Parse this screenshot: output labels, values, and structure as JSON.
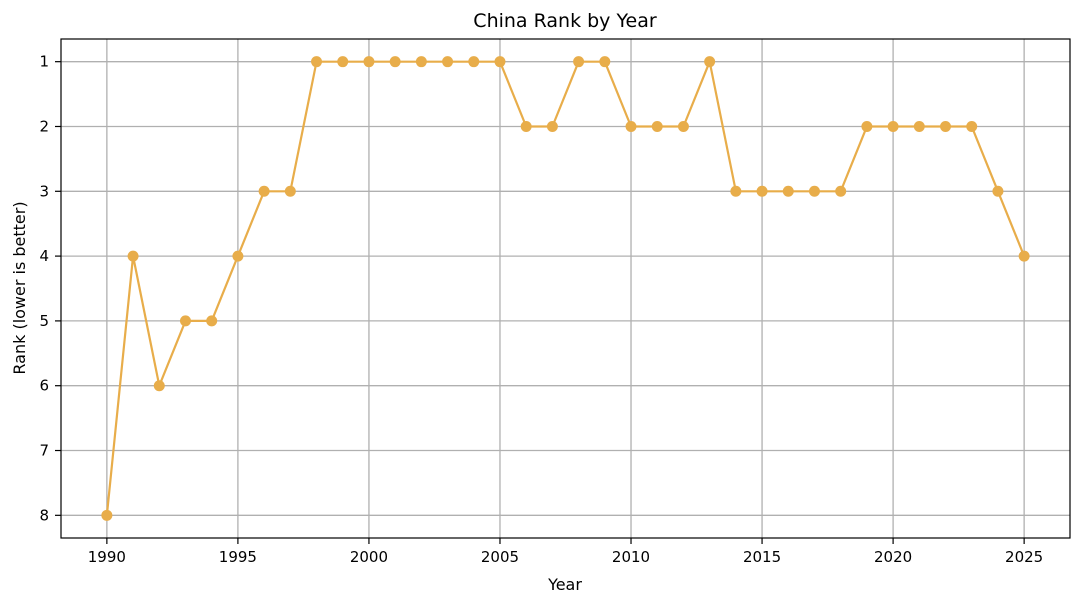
{
  "chart_data": {
    "type": "line",
    "title": "China Rank by Year",
    "xlabel": "Year",
    "ylabel": "Rank (lower is better)",
    "x": [
      1990,
      1991,
      1992,
      1993,
      1994,
      1995,
      1996,
      1997,
      1998,
      1999,
      2000,
      2001,
      2002,
      2003,
      2004,
      2005,
      2006,
      2007,
      2008,
      2009,
      2010,
      2011,
      2012,
      2013,
      2014,
      2015,
      2016,
      2017,
      2018,
      2019,
      2020,
      2021,
      2022,
      2023,
      2024,
      2025
    ],
    "series": [
      {
        "values": [
          8,
          4,
          6,
          5,
          5,
          4,
          3,
          3,
          1,
          1,
          1,
          1,
          1,
          1,
          1,
          1,
          2,
          2,
          1,
          1,
          2,
          2,
          2,
          1,
          3,
          3,
          3,
          3,
          3,
          2,
          2,
          2,
          2,
          2,
          3,
          4
        ],
        "color": "#e8ad4a",
        "marker": "circle"
      }
    ],
    "xlim": [
      1988.25,
      2026.75
    ],
    "ylim": [
      8.35,
      0.65
    ],
    "y_inverted": true,
    "xticks": [
      1990,
      1995,
      2000,
      2005,
      2010,
      2015,
      2020,
      2025
    ],
    "yticks": [
      1,
      2,
      3,
      4,
      5,
      6,
      7,
      8
    ],
    "grid": true,
    "legend": "none"
  }
}
